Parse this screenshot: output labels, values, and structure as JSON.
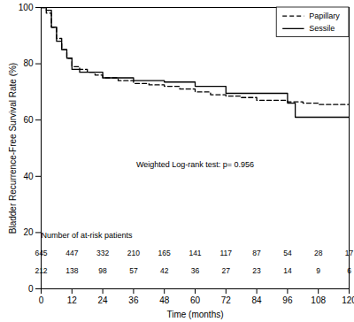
{
  "chart_data": {
    "type": "line",
    "xlabel": "Time (months)",
    "ylabel": "Bladder Recurrence-Free Survival Rate (%)",
    "xlim": [
      0,
      120
    ],
    "ylim": [
      0,
      100
    ],
    "xticks": [
      0,
      12,
      24,
      36,
      48,
      60,
      72,
      84,
      96,
      108,
      120
    ],
    "yticks": [
      0,
      20,
      40,
      60,
      80,
      100
    ],
    "legend": "top-right",
    "annotation": "Weighted Log-rank test: p= 0.956",
    "series": [
      {
        "name": "Papillary",
        "color": "#000000",
        "line_style": "dashed",
        "x": [
          0,
          2,
          4,
          6,
          8,
          10,
          12,
          15,
          18,
          21,
          24,
          30,
          36,
          42,
          48,
          54,
          60,
          66,
          72,
          78,
          84,
          90,
          96,
          102,
          108,
          114,
          120
        ],
        "values": [
          100,
          98,
          93,
          89,
          85,
          82,
          79,
          78,
          77,
          76,
          75,
          74,
          73,
          72.5,
          72,
          71,
          70,
          69,
          68.5,
          68,
          67,
          67,
          66.5,
          66,
          65.5,
          65.5,
          65.5
        ]
      },
      {
        "name": "Sessile",
        "color": "#000000",
        "line_style": "solid",
        "x": [
          0,
          2,
          4,
          6,
          8,
          10,
          12,
          15,
          18,
          24,
          30,
          36,
          48,
          60,
          72,
          84,
          96,
          99,
          120
        ],
        "values": [
          100,
          99,
          93,
          88,
          85,
          82,
          78,
          77,
          77,
          75,
          75,
          74,
          73.5,
          72,
          69.5,
          69.5,
          66,
          61,
          61
        ]
      }
    ],
    "at_risk": {
      "title": "Number of at-risk patients",
      "x": [
        0,
        12,
        24,
        36,
        48,
        60,
        72,
        84,
        96,
        108,
        120
      ],
      "rows": [
        [
          645,
          447,
          332,
          210,
          165,
          141,
          117,
          87,
          54,
          28,
          17
        ],
        [
          212,
          138,
          98,
          57,
          42,
          36,
          27,
          23,
          14,
          9,
          6
        ]
      ]
    }
  }
}
